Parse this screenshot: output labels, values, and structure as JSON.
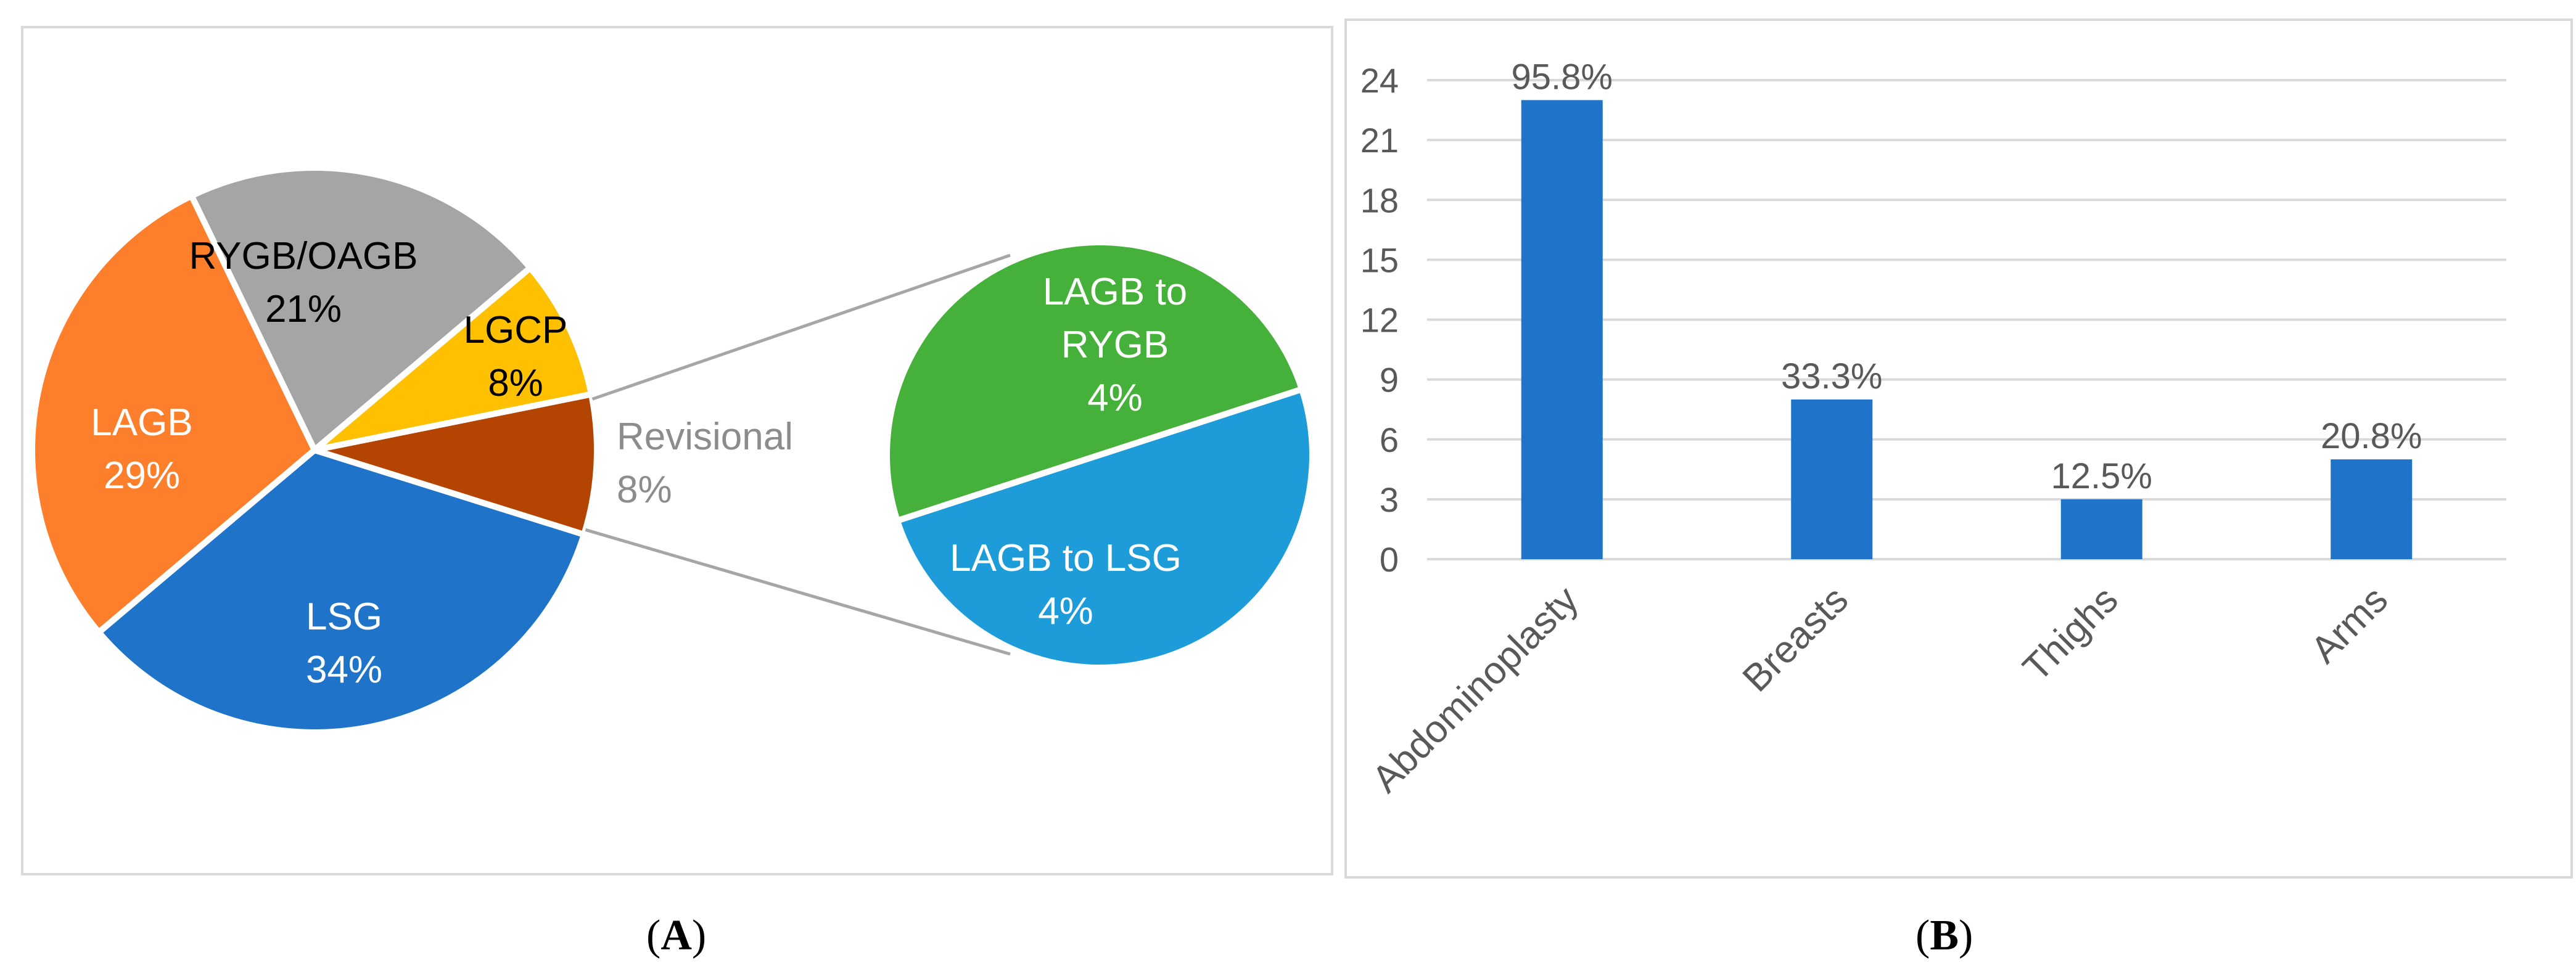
{
  "panel_a": {
    "caption_open": "(",
    "caption_letter": "A",
    "caption_close": ")"
  },
  "panel_b": {
    "caption_open": "(",
    "caption_letter": "B",
    "caption_close": ")"
  },
  "chart_data": [
    {
      "type": "pie",
      "slices": [
        {
          "label": "LSG",
          "percent_label": "34%",
          "value": 34,
          "color": "#1f74c9"
        },
        {
          "label": "LAGB",
          "percent_label": "29%",
          "value": 29,
          "color": "#fd7f2c"
        },
        {
          "label": "RYGB/OAGB",
          "percent_label": "21%",
          "value": 21,
          "color": "#a5a5a5"
        },
        {
          "label": "LGCP",
          "percent_label": "8%",
          "value": 8,
          "color": "#ffc000"
        },
        {
          "label": "Revisional",
          "percent_label": "8%",
          "value": 8,
          "color": "#b34402"
        }
      ],
      "breakdown": {
        "of": "Revisional",
        "slices": [
          {
            "label": "LAGB to RYGB",
            "percent_label": "4%",
            "value": 4,
            "color": "#46b13a"
          },
          {
            "label": "LAGB to LSG",
            "percent_label": "4%",
            "value": 4,
            "color": "#1e9cd9"
          }
        ]
      }
    },
    {
      "type": "bar",
      "categories": [
        "Abdominoplasty",
        "Breasts",
        "Thighs",
        "Arms"
      ],
      "values": [
        23,
        8,
        3,
        5
      ],
      "data_labels": [
        "95.8%",
        "33.3%",
        "12.5%",
        "20.8%"
      ],
      "yticks": [
        "0",
        "3",
        "6",
        "9",
        "12",
        "15",
        "18",
        "21",
        "24"
      ],
      "ylim": [
        0,
        24
      ],
      "grid": true,
      "bar_color": "#1f74c9"
    }
  ]
}
